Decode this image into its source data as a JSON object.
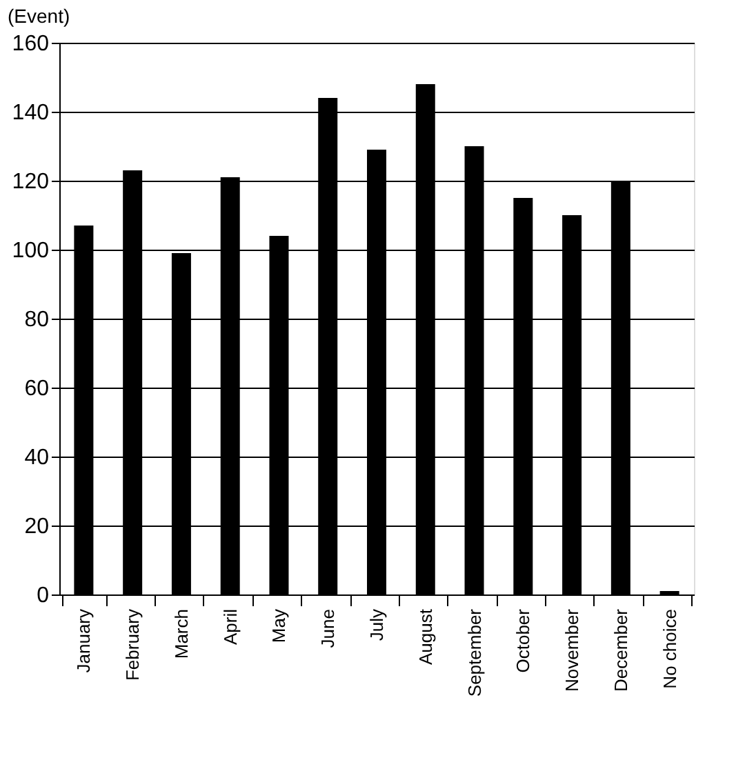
{
  "chart_data": {
    "type": "bar",
    "ylabel": "(Event)",
    "categories": [
      "January",
      "February",
      "March",
      "April",
      "May",
      "June",
      "July",
      "August",
      "September",
      "October",
      "November",
      "December",
      "No choice"
    ],
    "values": [
      107,
      123,
      99,
      121,
      104,
      144,
      129,
      148,
      130,
      115,
      110,
      120,
      1
    ],
    "color": "#000000",
    "ylim": [
      0,
      160
    ],
    "yticks": [
      0,
      20,
      40,
      60,
      80,
      100,
      120,
      140,
      160
    ],
    "grid": "y"
  }
}
